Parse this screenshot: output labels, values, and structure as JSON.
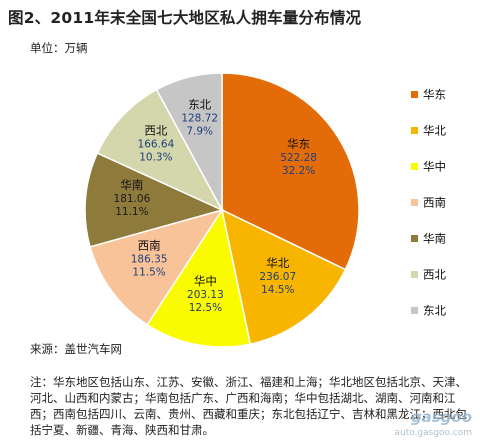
{
  "title": "图2、2011年末全国七大地区私人拥车量分布情况",
  "unit_label": "单位：万辆",
  "source": "来源：盖世汽车网",
  "note": "注：华东地区包括山东、江苏、安徽、浙江、福建和上海；华北地区包括北京、天津、河北、山西和内蒙古；华南包括广东、广西和海南；华中包括湖北、湖南、河南和江西；西南包括四川、云南、贵州、西藏和重庆；东北包括辽宁、吉林和黑龙江；西北包括宁夏、新疆、青海、陕西和甘肃。",
  "watermark": {
    "logo": "gasgoo",
    "url": "auto.gasgoo.com"
  },
  "chart_data": {
    "type": "pie",
    "title": "图2、2011年末全国七大地区私人拥车量分布情况",
    "unit": "万辆",
    "start_angle_deg": 0,
    "direction": "clockwise",
    "legend_position": "right",
    "slices": [
      {
        "label": "华东",
        "value": 522.28,
        "percent": "32.2%",
        "color": "#e36c09"
      },
      {
        "label": "华北",
        "value": 236.07,
        "percent": "14.5%",
        "color": "#f7b500"
      },
      {
        "label": "华中",
        "value": 203.13,
        "percent": "12.5%",
        "color": "#fbfb00"
      },
      {
        "label": "西南",
        "value": 186.35,
        "percent": "11.5%",
        "color": "#f9c39a"
      },
      {
        "label": "华南",
        "value": 181.06,
        "percent": "11.1%",
        "color": "#8e7b3c"
      },
      {
        "label": "西北",
        "value": 166.64,
        "percent": "10.3%",
        "color": "#d4d6ac"
      },
      {
        "label": "东北",
        "value": 128.72,
        "percent": "7.9%",
        "color": "#c6c6c6"
      }
    ]
  }
}
